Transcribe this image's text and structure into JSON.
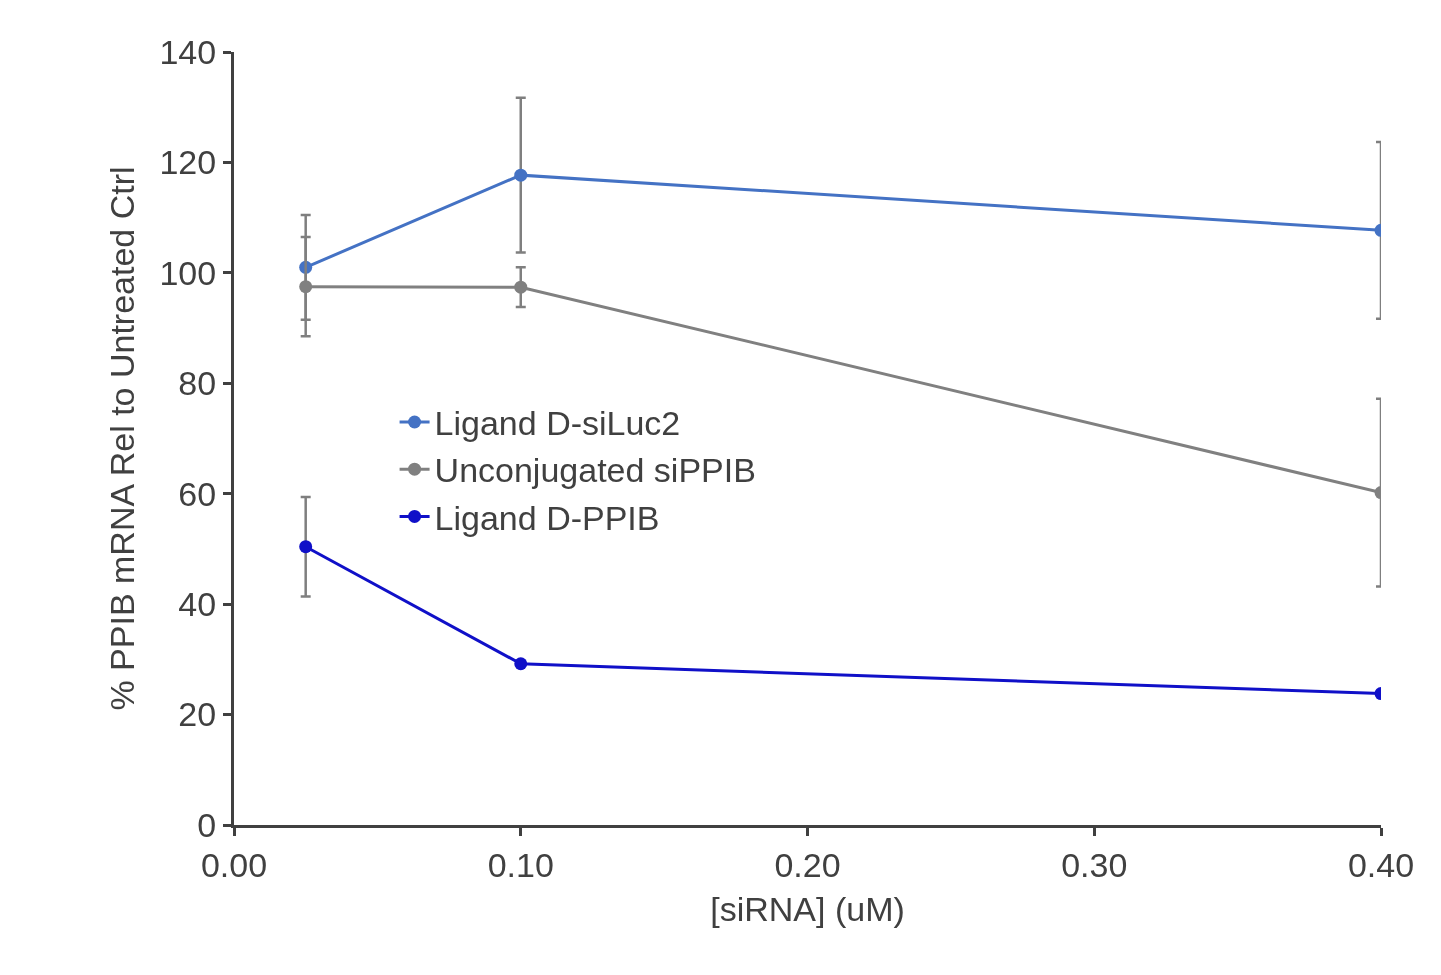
{
  "chart_data": {
    "type": "line",
    "xlabel": "[siRNA] (uM)",
    "ylabel": "% PPIB mRNA Rel to Untreated Ctrl",
    "x": [
      0.025,
      0.1,
      0.4
    ],
    "series": [
      {
        "name": "Ligand D-siLuc2",
        "color": "#4472c4",
        "values": [
          101,
          117.7,
          107.7
        ],
        "errors": [
          9.5,
          14,
          16
        ]
      },
      {
        "name": "Unconjugated siPPIB",
        "color": "#808080",
        "values": [
          97.5,
          97.4,
          60.2
        ],
        "errors": [
          9,
          3.6,
          17
        ]
      },
      {
        "name": "Ligand D-PPIB",
        "color": "#1010c8",
        "values": [
          50.4,
          29.2,
          23.8
        ],
        "errors": [
          9,
          null,
          null
        ]
      }
    ],
    "xlim": [
      0,
      0.4
    ],
    "xticks": [
      {
        "value": 0,
        "label": "0.00"
      },
      {
        "value": 0.1,
        "label": "0.10"
      },
      {
        "value": 0.2,
        "label": "0.20"
      },
      {
        "value": 0.3,
        "label": "0.30"
      },
      {
        "value": 0.4,
        "label": "0.40"
      }
    ],
    "ylim": [
      0,
      140
    ],
    "yticks": [
      0,
      20,
      40,
      60,
      80,
      100,
      120,
      140
    ],
    "legend": "left",
    "marker": "circle",
    "line_style": "solid"
  }
}
